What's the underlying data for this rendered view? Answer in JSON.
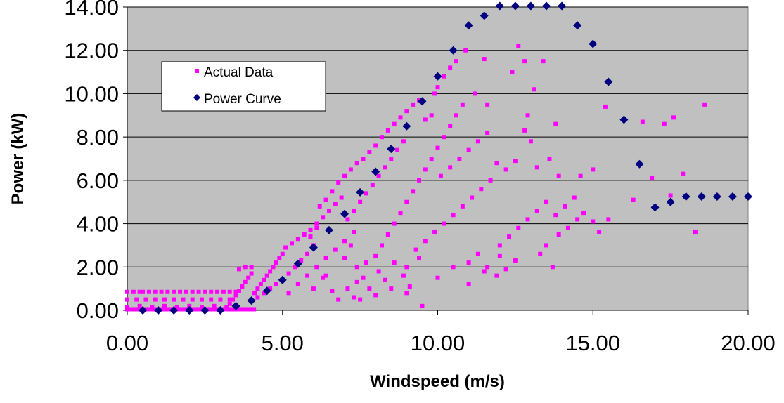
{
  "chart_data": {
    "type": "scatter",
    "title": "",
    "xlabel": "Windspeed (m/s)",
    "ylabel": "Power (kW)",
    "xlim": [
      0,
      20
    ],
    "ylim": [
      0,
      14
    ],
    "x_ticks": [
      "0.00",
      "5.00",
      "10.00",
      "15.00",
      "20.00"
    ],
    "x_tick_values": [
      0,
      5,
      10,
      15,
      20
    ],
    "y_ticks": [
      "0.00",
      "2.00",
      "4.00",
      "6.00",
      "8.00",
      "10.00",
      "12.00",
      "14.00"
    ],
    "y_tick_values": [
      0,
      2,
      4,
      6,
      8,
      10,
      12,
      14
    ],
    "grid": "horizontal",
    "plot_background": "#c0c0c0",
    "legend_position": "top-left",
    "series": [
      {
        "name": "Actual Data",
        "marker": "square",
        "color": "#ff00ff",
        "points": [
          [
            0.0,
            0.85
          ],
          [
            0.2,
            0.85
          ],
          [
            0.4,
            0.85
          ],
          [
            0.5,
            0.85
          ],
          [
            0.7,
            0.85
          ],
          [
            0.9,
            0.85
          ],
          [
            1.1,
            0.85
          ],
          [
            1.3,
            0.85
          ],
          [
            1.5,
            0.85
          ],
          [
            1.7,
            0.85
          ],
          [
            1.9,
            0.85
          ],
          [
            2.1,
            0.85
          ],
          [
            2.3,
            0.85
          ],
          [
            2.5,
            0.85
          ],
          [
            2.7,
            0.85
          ],
          [
            2.9,
            0.85
          ],
          [
            3.1,
            0.85
          ],
          [
            3.3,
            0.85
          ],
          [
            3.5,
            0.85
          ],
          [
            0.0,
            0.5
          ],
          [
            0.3,
            0.5
          ],
          [
            0.6,
            0.5
          ],
          [
            0.9,
            0.5
          ],
          [
            1.2,
            0.5
          ],
          [
            1.5,
            0.5
          ],
          [
            1.8,
            0.5
          ],
          [
            2.1,
            0.5
          ],
          [
            2.4,
            0.5
          ],
          [
            2.7,
            0.5
          ],
          [
            3.0,
            0.5
          ],
          [
            3.3,
            0.5
          ],
          [
            0.0,
            0.15
          ],
          [
            0.4,
            0.2
          ],
          [
            0.8,
            0.15
          ],
          [
            1.2,
            0.2
          ],
          [
            1.6,
            0.15
          ],
          [
            2.0,
            0.2
          ],
          [
            2.4,
            0.15
          ],
          [
            2.8,
            0.2
          ],
          [
            3.2,
            0.15
          ],
          [
            3.3,
            0.3
          ],
          [
            3.4,
            0.5
          ],
          [
            3.5,
            0.7
          ],
          [
            3.6,
            0.9
          ],
          [
            3.7,
            1.1
          ],
          [
            3.8,
            1.3
          ],
          [
            3.9,
            1.5
          ],
          [
            4.0,
            1.7
          ],
          [
            3.6,
            1.9
          ],
          [
            3.8,
            2.0
          ],
          [
            4.0,
            2.0
          ],
          [
            4.1,
            0.8
          ],
          [
            4.2,
            1.0
          ],
          [
            4.3,
            1.2
          ],
          [
            4.4,
            1.4
          ],
          [
            4.5,
            1.6
          ],
          [
            4.6,
            1.8
          ],
          [
            4.7,
            2.0
          ],
          [
            4.8,
            2.2
          ],
          [
            4.9,
            2.4
          ],
          [
            5.0,
            2.6
          ],
          [
            4.2,
            0.6
          ],
          [
            4.4,
            0.8
          ],
          [
            4.6,
            1.0
          ],
          [
            4.8,
            1.2
          ],
          [
            5.0,
            1.4
          ],
          [
            5.2,
            1.7
          ],
          [
            5.4,
            2.0
          ],
          [
            5.6,
            2.3
          ],
          [
            5.8,
            2.6
          ],
          [
            6.0,
            3.0
          ],
          [
            5.1,
            2.9
          ],
          [
            5.3,
            3.1
          ],
          [
            5.5,
            3.3
          ],
          [
            5.7,
            3.5
          ],
          [
            5.9,
            3.7
          ],
          [
            6.1,
            4.0
          ],
          [
            6.3,
            4.3
          ],
          [
            6.5,
            4.6
          ],
          [
            6.7,
            4.9
          ],
          [
            6.9,
            5.2
          ],
          [
            5.2,
            0.8
          ],
          [
            5.5,
            1.2
          ],
          [
            5.8,
            1.6
          ],
          [
            6.1,
            2.0
          ],
          [
            6.4,
            2.4
          ],
          [
            6.7,
            2.8
          ],
          [
            7.0,
            3.2
          ],
          [
            7.3,
            3.6
          ],
          [
            6.2,
            4.8
          ],
          [
            6.4,
            5.1
          ],
          [
            6.6,
            5.5
          ],
          [
            6.8,
            5.9
          ],
          [
            7.0,
            6.2
          ],
          [
            7.2,
            6.5
          ],
          [
            7.4,
            6.8
          ],
          [
            7.6,
            7.0
          ],
          [
            7.8,
            7.3
          ],
          [
            8.0,
            7.6
          ],
          [
            7.1,
            4.2
          ],
          [
            7.3,
            4.6
          ],
          [
            7.5,
            5.0
          ],
          [
            7.7,
            5.4
          ],
          [
            7.9,
            5.8
          ],
          [
            8.1,
            6.2
          ],
          [
            8.3,
            6.6
          ],
          [
            8.5,
            7.0
          ],
          [
            8.7,
            7.4
          ],
          [
            8.9,
            7.8
          ],
          [
            8.2,
            8.0
          ],
          [
            8.4,
            8.3
          ],
          [
            8.6,
            8.6
          ],
          [
            8.8,
            8.9
          ],
          [
            9.0,
            9.2
          ],
          [
            9.2,
            9.5
          ],
          [
            9.4,
            9.7
          ],
          [
            9.6,
            8.8
          ],
          [
            9.8,
            9.0
          ],
          [
            9.9,
            10.0
          ],
          [
            10.0,
            10.3
          ],
          [
            10.2,
            10.8
          ],
          [
            10.4,
            11.2
          ],
          [
            10.6,
            11.5
          ],
          [
            10.9,
            12.0
          ],
          [
            11.5,
            11.6
          ],
          [
            12.6,
            12.2
          ],
          [
            13.4,
            11.5
          ],
          [
            12.8,
            11.5
          ],
          [
            11.2,
            10.0
          ],
          [
            11.6,
            9.5
          ],
          [
            12.4,
            11.0
          ],
          [
            13.1,
            10.2
          ],
          [
            12.9,
            9.0
          ],
          [
            13.8,
            8.6
          ],
          [
            12.8,
            8.3
          ],
          [
            13.0,
            7.8
          ],
          [
            7.4,
            2.0
          ],
          [
            7.6,
            1.5
          ],
          [
            7.8,
            1.0
          ],
          [
            8.0,
            2.5
          ],
          [
            8.2,
            3.0
          ],
          [
            8.4,
            3.5
          ],
          [
            8.6,
            4.0
          ],
          [
            8.8,
            4.5
          ],
          [
            9.0,
            5.0
          ],
          [
            9.2,
            5.5
          ],
          [
            9.4,
            6.0
          ],
          [
            9.6,
            6.5
          ],
          [
            9.8,
            7.0
          ],
          [
            10.0,
            7.5
          ],
          [
            10.2,
            8.0
          ],
          [
            10.4,
            8.5
          ],
          [
            10.6,
            9.0
          ],
          [
            10.8,
            9.5
          ],
          [
            7.5,
            0.5
          ],
          [
            8.0,
            0.7
          ],
          [
            8.5,
            1.0
          ],
          [
            9.0,
            0.8
          ],
          [
            9.5,
            0.2
          ],
          [
            10.0,
            1.5
          ],
          [
            10.5,
            2.0
          ],
          [
            11.0,
            1.2
          ],
          [
            11.5,
            1.8
          ],
          [
            12.0,
            2.5
          ],
          [
            9.0,
            2.0
          ],
          [
            9.3,
            2.8
          ],
          [
            9.6,
            3.2
          ],
          [
            9.9,
            3.6
          ],
          [
            10.2,
            4.0
          ],
          [
            10.5,
            4.4
          ],
          [
            10.8,
            4.8
          ],
          [
            11.1,
            5.2
          ],
          [
            11.4,
            5.6
          ],
          [
            11.7,
            6.0
          ],
          [
            10.1,
            6.2
          ],
          [
            10.4,
            6.6
          ],
          [
            10.7,
            7.0
          ],
          [
            11.0,
            7.4
          ],
          [
            11.3,
            7.8
          ],
          [
            11.6,
            8.2
          ],
          [
            11.9,
            6.8
          ],
          [
            12.2,
            6.5
          ],
          [
            12.5,
            6.9
          ],
          [
            12.0,
            3.0
          ],
          [
            12.3,
            3.4
          ],
          [
            12.6,
            3.8
          ],
          [
            12.9,
            4.2
          ],
          [
            13.2,
            4.6
          ],
          [
            13.5,
            5.0
          ],
          [
            13.8,
            4.4
          ],
          [
            14.1,
            4.8
          ],
          [
            14.4,
            5.2
          ],
          [
            11.0,
            2.2
          ],
          [
            11.3,
            2.6
          ],
          [
            11.6,
            2.0
          ],
          [
            11.9,
            1.6
          ],
          [
            12.2,
            1.9
          ],
          [
            12.5,
            2.3
          ],
          [
            13.3,
            2.6
          ],
          [
            13.5,
            3.0
          ],
          [
            13.7,
            2.0
          ],
          [
            13.9,
            3.5
          ],
          [
            14.2,
            3.8
          ],
          [
            14.5,
            4.2
          ],
          [
            14.7,
            4.5
          ],
          [
            15.0,
            4.1
          ],
          [
            15.2,
            3.6
          ],
          [
            15.5,
            4.2
          ],
          [
            14.6,
            6.2
          ],
          [
            15.0,
            6.5
          ],
          [
            15.4,
            9.4
          ],
          [
            13.9,
            6.2
          ],
          [
            13.6,
            7.0
          ],
          [
            13.2,
            6.6
          ],
          [
            16.3,
            5.1
          ],
          [
            16.6,
            8.7
          ],
          [
            16.9,
            6.1
          ],
          [
            17.3,
            8.6
          ],
          [
            17.6,
            8.9
          ],
          [
            17.9,
            6.3
          ],
          [
            18.3,
            3.6
          ],
          [
            18.6,
            9.5
          ],
          [
            17.5,
            5.3
          ],
          [
            7.0,
            2.4
          ],
          [
            7.2,
            3.0
          ],
          [
            7.4,
            1.3
          ],
          [
            7.7,
            2.2
          ],
          [
            8.1,
            1.8
          ],
          [
            8.3,
            1.4
          ],
          [
            8.6,
            2.2
          ],
          [
            8.9,
            1.6
          ],
          [
            9.1,
            1.1
          ],
          [
            9.4,
            2.4
          ],
          [
            6.0,
            1.0
          ],
          [
            6.3,
            1.5
          ],
          [
            6.6,
            0.9
          ],
          [
            6.8,
            0.5
          ],
          [
            7.1,
            1.0
          ],
          [
            7.3,
            0.6
          ],
          [
            5.9,
            3.4
          ],
          [
            6.1,
            3.8
          ],
          [
            6.4,
            1.6
          ]
        ]
      },
      {
        "name": "Power Curve",
        "marker": "diamond",
        "color": "#000080",
        "points": [
          [
            0.5,
            0
          ],
          [
            1.0,
            0
          ],
          [
            1.5,
            0
          ],
          [
            2.0,
            0
          ],
          [
            2.5,
            0
          ],
          [
            3.0,
            0
          ],
          [
            3.5,
            0.2
          ],
          [
            4.0,
            0.45
          ],
          [
            4.5,
            0.9
          ],
          [
            5.0,
            1.4
          ],
          [
            5.5,
            2.15
          ],
          [
            6.0,
            2.9
          ],
          [
            6.5,
            3.7
          ],
          [
            7.0,
            4.45
          ],
          [
            7.5,
            5.45
          ],
          [
            8.0,
            6.4
          ],
          [
            8.5,
            7.45
          ],
          [
            9.0,
            8.5
          ],
          [
            9.5,
            9.65
          ],
          [
            10.0,
            10.8
          ],
          [
            10.5,
            12.0
          ],
          [
            11.0,
            13.15
          ],
          [
            11.5,
            13.6
          ],
          [
            12.0,
            14.05
          ],
          [
            12.5,
            14.05
          ],
          [
            13.0,
            14.05
          ],
          [
            13.5,
            14.05
          ],
          [
            14.0,
            14.05
          ],
          [
            14.5,
            13.15
          ],
          [
            15.0,
            12.3
          ],
          [
            15.5,
            10.55
          ],
          [
            16.0,
            8.8
          ],
          [
            16.5,
            6.75
          ],
          [
            17.0,
            4.75
          ],
          [
            17.5,
            5.0
          ],
          [
            18.0,
            5.25
          ],
          [
            18.5,
            5.25
          ],
          [
            19.0,
            5.25
          ],
          [
            19.5,
            5.25
          ],
          [
            20.0,
            5.25
          ]
        ]
      }
    ]
  }
}
